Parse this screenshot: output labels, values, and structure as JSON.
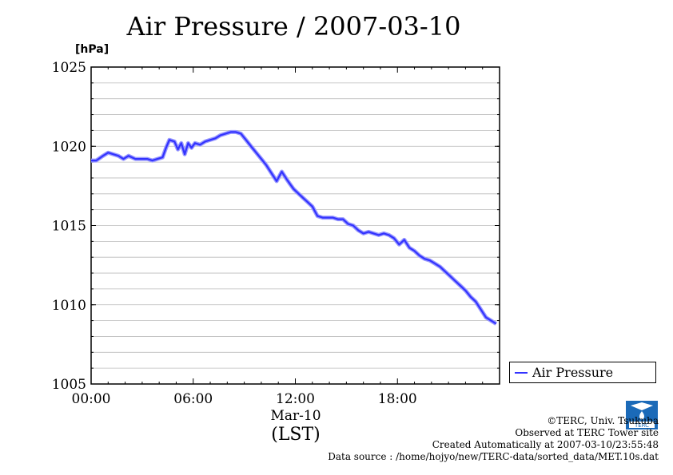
{
  "header": {
    "title": "Air Pressure / 2007-03-10",
    "unit": "[hPa]"
  },
  "xaxis": {
    "date_label": "Mar-10",
    "zone_label": "(LST)"
  },
  "legend": {
    "label": "Air Pressure"
  },
  "credits": {
    "line1": "©TERC, Univ. Tsukuba",
    "line2": "Observed at TERC Tower site",
    "line3": "Created Automatically at 2007-03-10/23:55:48",
    "line4": "Data source : /home/hojyo/new/TERC-data/sorted_data/MET.10s.dat"
  },
  "logo": {
    "icon": "terc-logo-icon",
    "text": "TERC"
  },
  "colors": {
    "series": "#3333ff",
    "grid": "#bbbbbb"
  },
  "chart_data": {
    "type": "line",
    "title": "Air Pressure / 2007-03-10",
    "xlabel": "",
    "ylabel": "[hPa]",
    "ylim": [
      1005,
      1025
    ],
    "xlim": [
      0,
      24
    ],
    "y_ticks": [
      1005,
      1010,
      1015,
      1020,
      1025
    ],
    "x_ticks": [
      0,
      6,
      12,
      18
    ],
    "x_tick_labels": [
      "00:00",
      "06:00",
      "12:00",
      "18:00"
    ],
    "grid": true,
    "legend_position": "right-bottom",
    "series": [
      {
        "name": "Air Pressure",
        "x": [
          0,
          0.3,
          0.7,
          1.0,
          1.3,
          1.6,
          1.9,
          2.2,
          2.6,
          3.0,
          3.3,
          3.6,
          3.9,
          4.2,
          4.4,
          4.6,
          4.9,
          5.1,
          5.3,
          5.5,
          5.7,
          5.9,
          6.1,
          6.4,
          6.7,
          7.0,
          7.3,
          7.6,
          7.9,
          8.2,
          8.5,
          8.8,
          9.1,
          9.4,
          9.7,
          10.0,
          10.3,
          10.6,
          10.9,
          11.2,
          11.5,
          11.7,
          11.9,
          12.1,
          12.4,
          12.7,
          13.0,
          13.3,
          13.6,
          13.9,
          14.2,
          14.5,
          14.8,
          15.1,
          15.4,
          15.7,
          16.0,
          16.3,
          16.6,
          16.9,
          17.2,
          17.5,
          17.8,
          18.1,
          18.4,
          18.7,
          19.0,
          19.3,
          19.6,
          19.9,
          20.2,
          20.5,
          20.8,
          21.1,
          21.4,
          21.7,
          22.0,
          22.3,
          22.6,
          22.9,
          23.2,
          23.5,
          23.8
        ],
        "values": [
          1019.1,
          1019.1,
          1019.4,
          1019.6,
          1019.5,
          1019.4,
          1019.2,
          1019.4,
          1019.2,
          1019.2,
          1019.2,
          1019.1,
          1019.2,
          1019.3,
          1019.9,
          1020.4,
          1020.3,
          1019.8,
          1020.2,
          1019.5,
          1020.2,
          1019.9,
          1020.2,
          1020.1,
          1020.3,
          1020.4,
          1020.5,
          1020.7,
          1020.8,
          1020.9,
          1020.9,
          1020.8,
          1020.4,
          1020.0,
          1019.6,
          1019.2,
          1018.8,
          1018.3,
          1017.8,
          1018.4,
          1017.9,
          1017.6,
          1017.3,
          1017.1,
          1016.8,
          1016.5,
          1016.2,
          1015.6,
          1015.5,
          1015.5,
          1015.5,
          1015.4,
          1015.4,
          1015.1,
          1015.0,
          1014.7,
          1014.5,
          1014.6,
          1014.5,
          1014.4,
          1014.5,
          1014.4,
          1014.2,
          1013.8,
          1014.1,
          1013.6,
          1013.4,
          1013.1,
          1012.9,
          1012.8,
          1012.6,
          1012.4,
          1012.1,
          1011.8,
          1011.5,
          1011.2,
          1010.9,
          1010.5,
          1010.2,
          1009.7,
          1009.2,
          1009.0,
          1008.8
        ]
      }
    ]
  }
}
